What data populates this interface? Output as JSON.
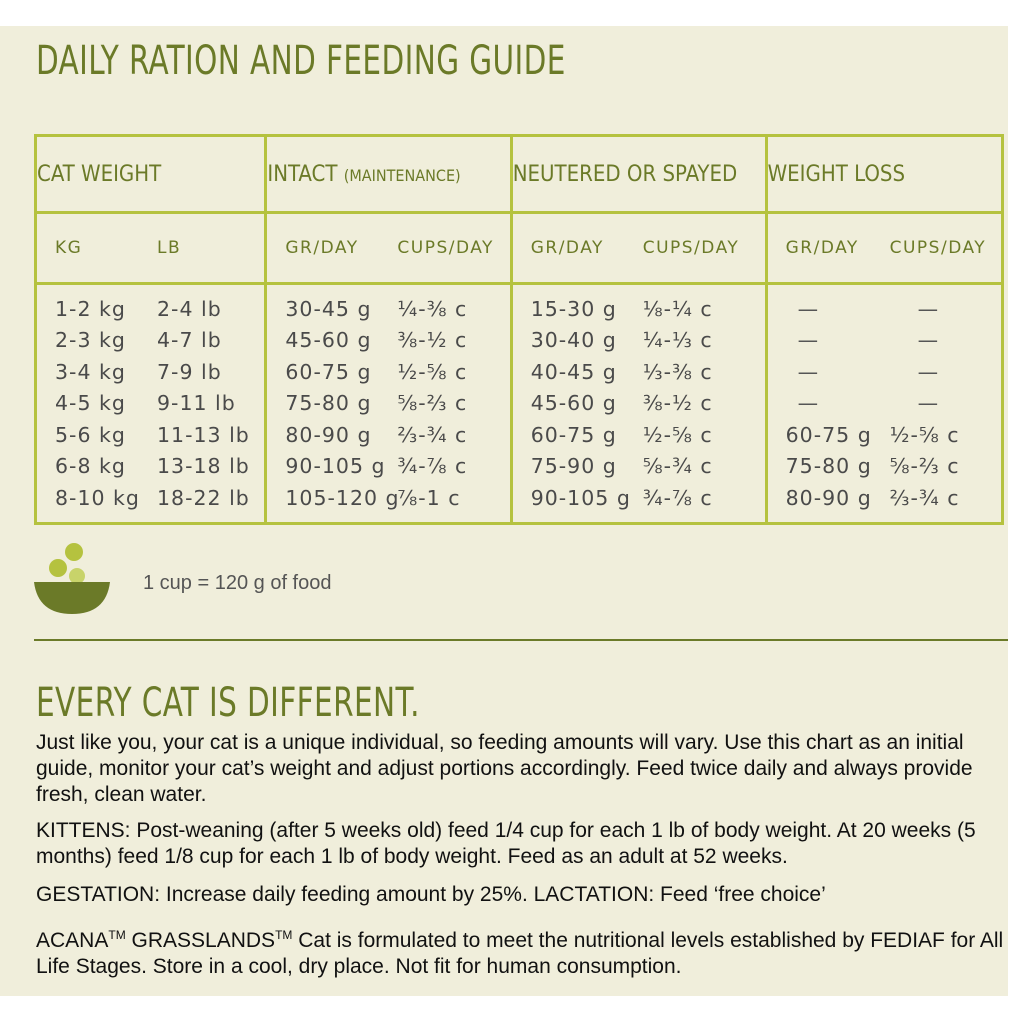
{
  "title": "DAILY RATION AND FEEDING GUIDE",
  "table": {
    "columns": [
      {
        "label": "CAT WEIGHT",
        "note": ""
      },
      {
        "label": "INTACT",
        "note": "(MAINTENANCE)"
      },
      {
        "label": "NEUTERED OR SPAYED",
        "note": ""
      },
      {
        "label": "WEIGHT LOSS",
        "note": ""
      }
    ],
    "subheaders": [
      "KG",
      "LB",
      "GR/DAY",
      "CUPS/DAY",
      "GR/DAY",
      "CUPS/DAY",
      "GR/DAY",
      "CUPS/DAY"
    ],
    "rows": [
      [
        "1-2 kg",
        "2-4 lb",
        "30-45 g",
        "¼-⅜ c",
        "15-30 g",
        "⅛-¼ c",
        "—",
        "—"
      ],
      [
        "2-3 kg",
        "4-7 lb",
        "45-60 g",
        "⅜-½ c",
        "30-40 g",
        "¼-⅓ c",
        "—",
        "—"
      ],
      [
        "3-4 kg",
        "7-9 lb",
        "60-75 g",
        "½-⅝ c",
        "40-45 g",
        "⅓-⅜ c",
        "—",
        "—"
      ],
      [
        "4-5 kg",
        "9-11 lb",
        "75-80 g",
        "⅝-⅔ c",
        "45-60 g",
        "⅜-½ c",
        "—",
        "—"
      ],
      [
        "5-6 kg",
        "11-13 lb",
        "80-90 g",
        "⅔-¾ c",
        "60-75 g",
        "½-⅝ c",
        "60-75 g",
        "½-⅝ c"
      ],
      [
        "6-8 kg",
        "13-18 lb",
        "90-105 g",
        "¾-⅞ c",
        "75-90 g",
        "⅝-¾ c",
        "75-80 g",
        "⅝-⅔ c"
      ],
      [
        "8-10 kg",
        "18-22 lb",
        "105-120 g",
        "⅞-1 c",
        "90-105 g",
        "¾-⅞ c",
        "80-90 g",
        "⅔-¾ c"
      ]
    ]
  },
  "cup_note": "1 cup = 120 g of food",
  "icon": "food-bowl-icon",
  "colors": {
    "accent": "#6b7a28",
    "border": "#b5c23f",
    "background": "#f0eedb"
  },
  "subtitle": "EVERY CAT IS DIFFERENT.",
  "paragraphs": {
    "intro": "Just like you, your cat is a unique individual, so feeding amounts will vary. Use this chart as an initial guide, monitor your cat’s weight and adjust portions accordingly. Feed twice daily and always provide fresh, clean water.",
    "kittens": "KITTENS: Post-weaning (after 5 weeks old) feed 1/4 cup for each 1 lb of body weight. At 20 weeks (5 months) feed 1/8 cup for each 1 lb of body weight. Feed as an adult at 52 weeks.",
    "gestation": "GESTATION: Increase daily feeding amount by 25%. LACTATION: Feed ‘free choice’",
    "acana_brand": "ACANA",
    "tm1": "TM",
    "grasslands": " GRASSLANDS",
    "tm2": "TM",
    "acana_rest": " Cat is formulated to meet the nutritional levels established by FEDIAF for All Life Stages. Store in a cool, dry place. Not fit for human consumption."
  }
}
